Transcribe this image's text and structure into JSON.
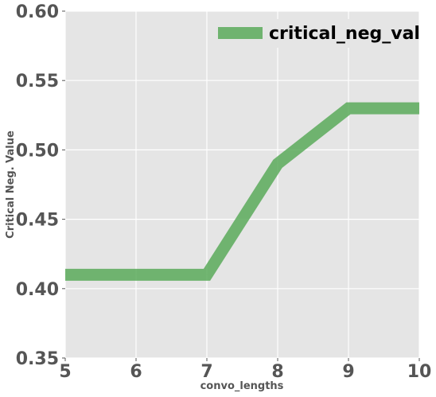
{
  "chart_data": {
    "type": "line",
    "title": "",
    "xlabel": "convo_lengths",
    "ylabel": "Critical Neg. Value",
    "xlim": [
      5,
      10
    ],
    "ylim": [
      0.35,
      0.6
    ],
    "x_ticks": [
      5,
      6,
      7,
      8,
      9,
      10
    ],
    "y_ticks": [
      0.35,
      0.4,
      0.45,
      0.5,
      0.55,
      0.6
    ],
    "x_tick_labels": [
      "5",
      "6",
      "7",
      "8",
      "9",
      "10"
    ],
    "y_tick_labels": [
      "0.35",
      "0.40",
      "0.45",
      "0.50",
      "0.55",
      "0.60"
    ],
    "grid": true,
    "legend_position": "top-right",
    "series": [
      {
        "name": "critical_neg_val",
        "color": "#5aaa5a",
        "x": [
          5,
          6,
          7,
          8,
          9,
          10
        ],
        "values": [
          0.41,
          0.41,
          0.41,
          0.49,
          0.53,
          0.53
        ]
      }
    ],
    "colors": {
      "plot_background": "#e5e5e5",
      "grid": "#ffffff",
      "tick_text": "#555555"
    }
  }
}
